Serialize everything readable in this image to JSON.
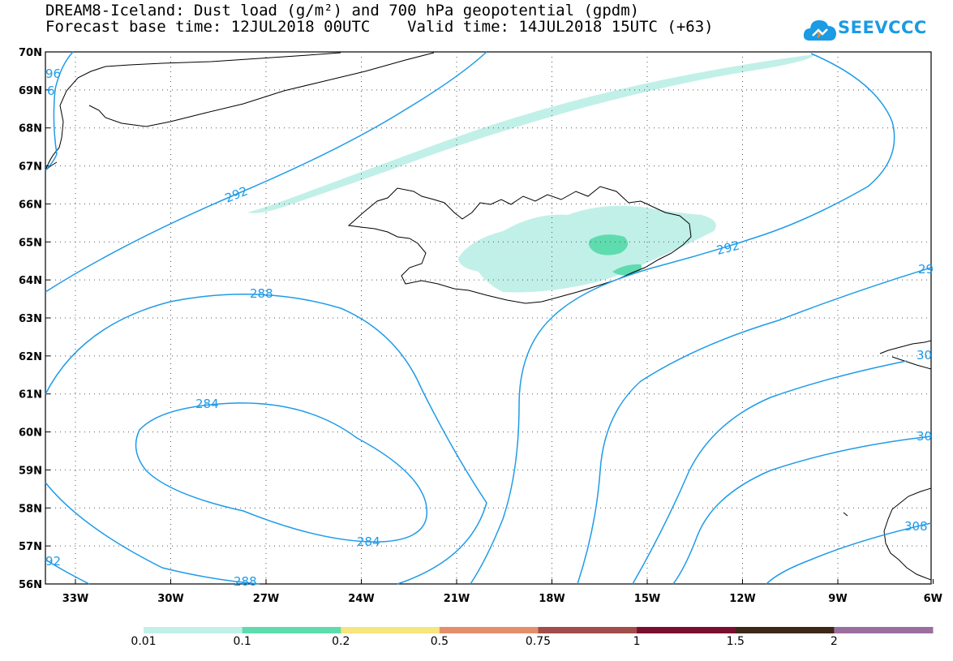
{
  "title": {
    "line1": "DREAM8-Iceland: Dust load (g/m²) and 700 hPa geopotential (gpdm)",
    "line2": "Forecast base time: 12JUL2018 00UTC    Valid time: 14JUL2018 15UTC (+63)"
  },
  "logo": {
    "text": "SEEVCCC",
    "icon": "cloud-icon",
    "color": "#1a9be3"
  },
  "map": {
    "lat_labels": [
      "70N",
      "69N",
      "68N",
      "67N",
      "66N",
      "65N",
      "64N",
      "63N",
      "62N",
      "61N",
      "60N",
      "59N",
      "58N",
      "57N",
      "56N"
    ],
    "lon_labels": [
      "33W",
      "30W",
      "27W",
      "24W",
      "21W",
      "18W",
      "15W",
      "12W",
      "9W",
      "6W"
    ],
    "contour_color": "#1e9be8",
    "contour_labels": [
      "292",
      "288",
      "284",
      "284",
      "292",
      "96",
      "6",
      "92",
      "288",
      "29",
      "30",
      "30",
      "308"
    ]
  },
  "legend": {
    "colors": [
      "#c1f0e8",
      "#5fdcaf",
      "#f7e57d",
      "#e48f6b",
      "#a14d4a",
      "#7a0e2e",
      "#3d2716",
      "#9a6fa0"
    ],
    "labels": [
      "0.01",
      "0.1",
      "0.2",
      "0.5",
      "0.75",
      "1",
      "1.5",
      "2"
    ]
  }
}
